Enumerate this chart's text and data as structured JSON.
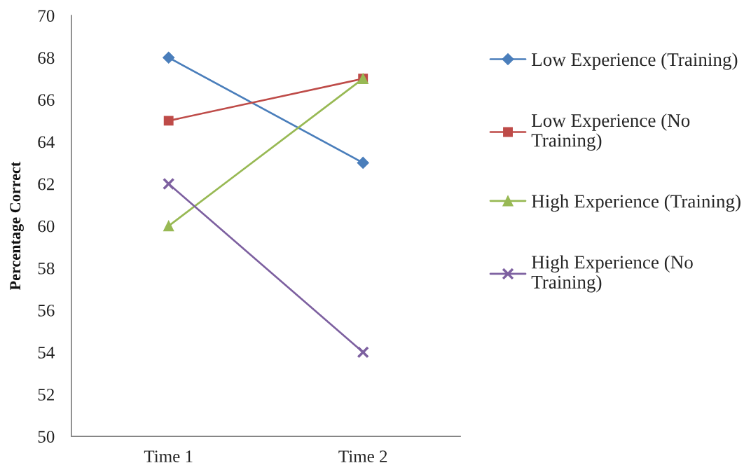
{
  "chart_data": {
    "type": "line",
    "ylabel": "Percentage Correct",
    "categories": [
      "Time 1",
      "Time 2"
    ],
    "series": [
      {
        "name": "Low Experience (Training)",
        "color": "#4a7ebb",
        "marker": "diamond",
        "values": [
          68,
          63
        ]
      },
      {
        "name": "Low Experience (No\nTraining)",
        "color": "#be4b48",
        "marker": "square",
        "values": [
          65,
          67
        ]
      },
      {
        "name": "High Experience (Training)",
        "color": "#98b954",
        "marker": "triangle",
        "values": [
          60,
          67
        ]
      },
      {
        "name": "High Experience (No\nTraining)",
        "color": "#7d60a0",
        "marker": "cross",
        "values": [
          62,
          54
        ]
      }
    ],
    "ylim": [
      50,
      70
    ],
    "yticks": [
      50,
      52,
      54,
      56,
      58,
      60,
      62,
      64,
      66,
      68,
      70
    ],
    "grid": false,
    "legend": "right",
    "line_style": "solid"
  }
}
